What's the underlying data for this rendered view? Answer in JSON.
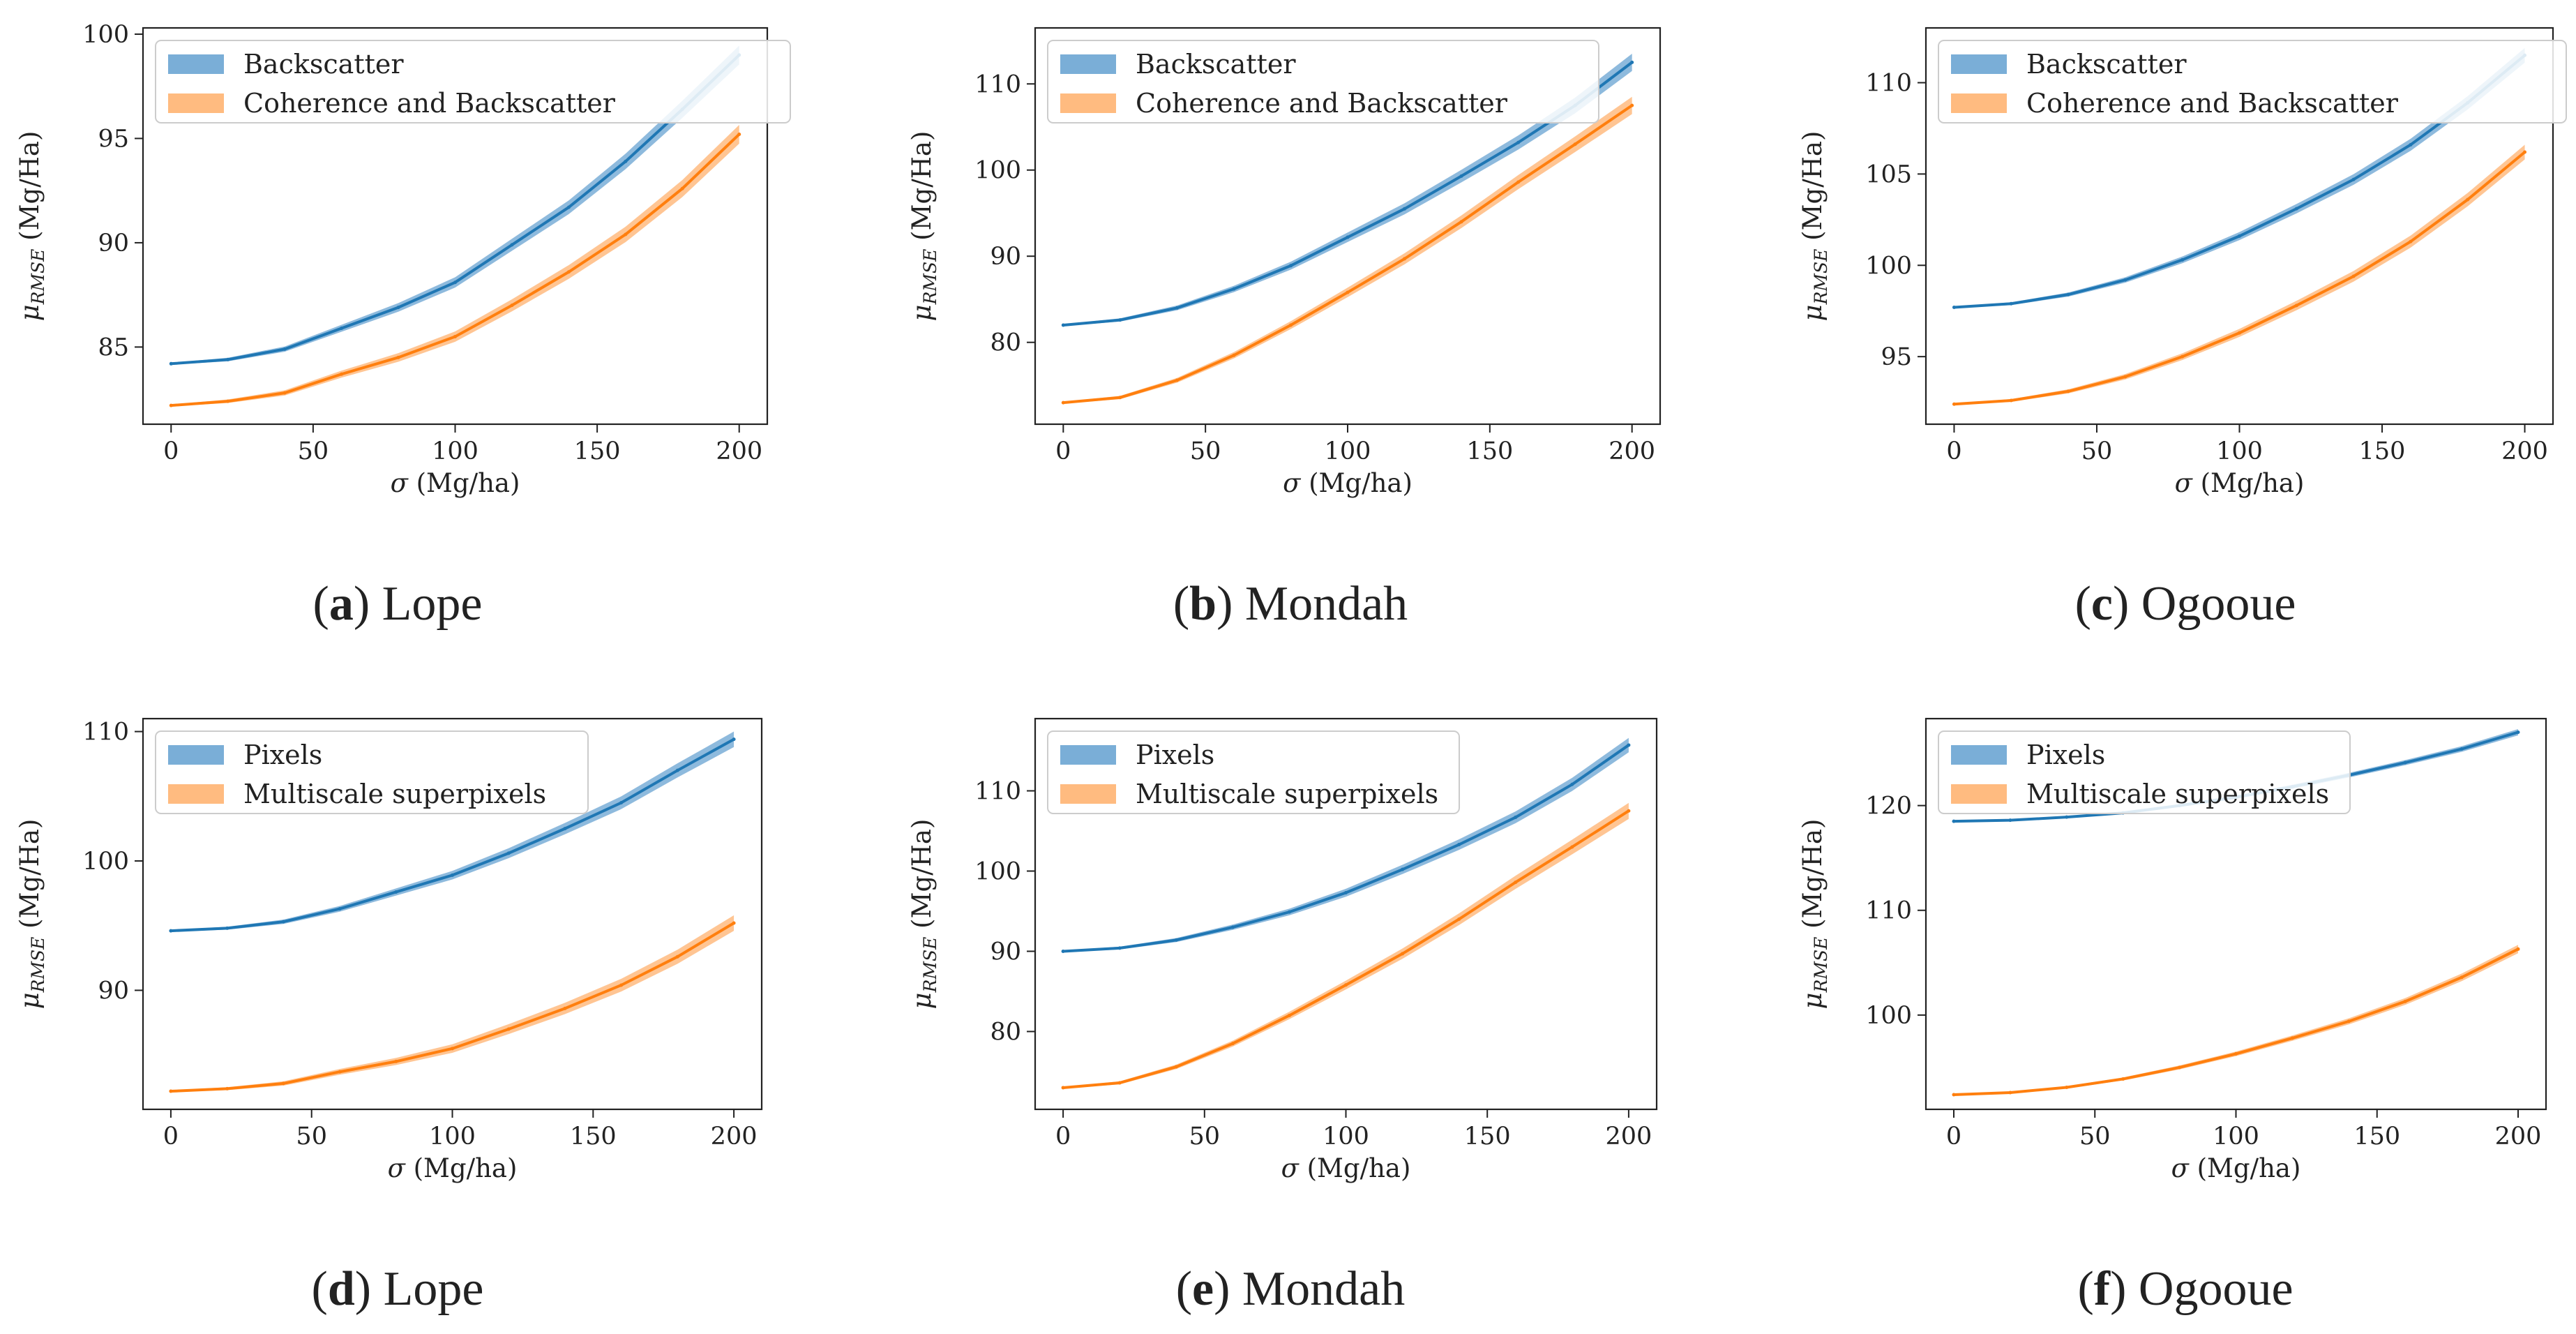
{
  "figure": {
    "captions": [
      {
        "letter": "a",
        "name": "Lope"
      },
      {
        "letter": "b",
        "name": "Mondah"
      },
      {
        "letter": "c",
        "name": "Ogooue"
      },
      {
        "letter": "d",
        "name": "Lope"
      },
      {
        "letter": "e",
        "name": "Mondah"
      },
      {
        "letter": "f",
        "name": "Ogooue"
      }
    ]
  },
  "colors": {
    "blue": "#1f77b4",
    "orange": "#ff7f0e",
    "blue_band": "#7aaed7",
    "orange_band": "#ffbb80"
  },
  "chart_data": [
    {
      "type": "line",
      "title": "(a) Lope",
      "xlabel": "σ (Mg/ha)",
      "ylabel": "μRMSE (Mg/Ha)",
      "xlim": [
        0,
        200
      ],
      "ylim": [
        81.3,
        100.3
      ],
      "xticks": [
        0,
        50,
        100,
        150,
        200
      ],
      "yticks": [
        85,
        90,
        95,
        100
      ],
      "legend": "upper-left",
      "x": [
        0,
        20,
        40,
        60,
        80,
        100,
        120,
        140,
        160,
        180,
        200
      ],
      "series": [
        {
          "name": "Backscatter",
          "color": "#1f77b4",
          "values": [
            84.2,
            84.4,
            84.9,
            85.9,
            86.9,
            88.1,
            89.9,
            91.7,
            93.9,
            96.4,
            99.0
          ],
          "band": 0.45
        },
        {
          "name": "Coherence and Backscatter",
          "color": "#ff7f0e",
          "values": [
            82.2,
            82.4,
            82.8,
            83.7,
            84.5,
            85.5,
            87.0,
            88.6,
            90.4,
            92.6,
            95.2
          ],
          "band": 0.45
        }
      ]
    },
    {
      "type": "line",
      "title": "(b) Mondah",
      "xlabel": "σ (Mg/ha)",
      "ylabel": "μRMSE (Mg/Ha)",
      "xlim": [
        0,
        200
      ],
      "ylim": [
        70.5,
        116.5
      ],
      "xticks": [
        0,
        50,
        100,
        150,
        200
      ],
      "yticks": [
        80,
        90,
        100,
        110
      ],
      "legend": "upper-left",
      "x": [
        0,
        20,
        40,
        60,
        80,
        100,
        120,
        140,
        160,
        180,
        200
      ],
      "series": [
        {
          "name": "Backscatter",
          "color": "#1f77b4",
          "values": [
            82.0,
            82.6,
            84.0,
            86.2,
            88.9,
            92.2,
            95.5,
            99.3,
            103.2,
            107.5,
            112.5
          ],
          "band": 1.0
        },
        {
          "name": "Coherence and Backscatter",
          "color": "#ff7f0e",
          "values": [
            73.0,
            73.6,
            75.6,
            78.5,
            82.0,
            85.8,
            89.7,
            94.0,
            98.6,
            103.0,
            107.5
          ],
          "band": 1.0
        }
      ]
    },
    {
      "type": "line",
      "title": "(c) Ogooue",
      "xlabel": "σ (Mg/ha)",
      "ylabel": "μRMSE (Mg/Ha)",
      "xlim": [
        0,
        200
      ],
      "ylim": [
        91.3,
        113.0
      ],
      "xticks": [
        0,
        50,
        100,
        150,
        200
      ],
      "yticks": [
        95,
        100,
        105,
        110
      ],
      "legend": "upper-left",
      "x": [
        0,
        20,
        40,
        60,
        80,
        100,
        120,
        140,
        160,
        180,
        200
      ],
      "series": [
        {
          "name": "Backscatter",
          "color": "#1f77b4",
          "values": [
            97.7,
            97.9,
            98.4,
            99.2,
            100.3,
            101.6,
            103.1,
            104.7,
            106.6,
            108.9,
            111.5
          ],
          "band": 0.4
        },
        {
          "name": "Coherence and Backscatter",
          "color": "#ff7f0e",
          "values": [
            92.4,
            92.6,
            93.1,
            93.9,
            95.0,
            96.3,
            97.8,
            99.4,
            101.3,
            103.6,
            106.2
          ],
          "band": 0.4
        }
      ]
    },
    {
      "type": "line",
      "title": "(d) Lope",
      "xlabel": "σ (Mg/ha)",
      "ylabel": "μRMSE (Mg/Ha)",
      "xlim": [
        0,
        200
      ],
      "ylim": [
        80.8,
        111.0
      ],
      "xticks": [
        0,
        50,
        100,
        150,
        200
      ],
      "yticks": [
        90,
        100,
        110
      ],
      "legend": "upper-left",
      "x": [
        0,
        20,
        40,
        60,
        80,
        100,
        120,
        140,
        160,
        180,
        200
      ],
      "series": [
        {
          "name": "Pixels",
          "color": "#1f77b4",
          "values": [
            94.6,
            94.8,
            95.3,
            96.3,
            97.6,
            98.9,
            100.6,
            102.5,
            104.5,
            107.0,
            109.4
          ],
          "band": 0.6
        },
        {
          "name": "Multiscale superpixels",
          "color": "#ff7f0e",
          "values": [
            82.2,
            82.4,
            82.8,
            83.7,
            84.5,
            85.5,
            87.0,
            88.6,
            90.4,
            92.6,
            95.2
          ],
          "band": 0.6
        }
      ]
    },
    {
      "type": "line",
      "title": "(e) Mondah",
      "xlabel": "σ (Mg/ha)",
      "ylabel": "μRMSE (Mg/Ha)",
      "xlim": [
        0,
        200
      ],
      "ylim": [
        70.3,
        119.0
      ],
      "xticks": [
        0,
        50,
        100,
        150,
        200
      ],
      "yticks": [
        80,
        90,
        100,
        110
      ],
      "legend": "upper-left",
      "x": [
        0,
        20,
        40,
        60,
        80,
        100,
        120,
        140,
        160,
        180,
        200
      ],
      "series": [
        {
          "name": "Pixels",
          "color": "#1f77b4",
          "values": [
            90.0,
            90.4,
            91.4,
            93.0,
            94.9,
            97.3,
            100.2,
            103.3,
            106.7,
            110.8,
            115.7
          ],
          "band": 0.9
        },
        {
          "name": "Multiscale superpixels",
          "color": "#ff7f0e",
          "values": [
            73.0,
            73.6,
            75.6,
            78.5,
            82.0,
            85.8,
            89.7,
            94.0,
            98.6,
            103.0,
            107.5
          ],
          "band": 1.0
        }
      ]
    },
    {
      "type": "line",
      "title": "(f) Ogooue",
      "xlabel": "σ (Mg/ha)",
      "ylabel": "μRMSE (Mg/Ha)",
      "xlim": [
        0,
        200
      ],
      "ylim": [
        91.0,
        128.3
      ],
      "xticks": [
        0,
        50,
        100,
        150,
        200
      ],
      "yticks": [
        100,
        110,
        120
      ],
      "legend": "upper-left",
      "x": [
        0,
        20,
        40,
        60,
        80,
        100,
        120,
        140,
        160,
        180,
        200
      ],
      "series": [
        {
          "name": "Pixels",
          "color": "#1f77b4",
          "values": [
            118.5,
            118.6,
            118.9,
            119.3,
            120.0,
            120.8,
            121.8,
            122.9,
            124.1,
            125.4,
            127.0
          ],
          "band": 0.3
        },
        {
          "name": "Multiscale superpixels",
          "color": "#ff7f0e",
          "values": [
            92.4,
            92.6,
            93.1,
            93.9,
            95.0,
            96.3,
            97.8,
            99.4,
            101.3,
            103.6,
            106.3
          ],
          "band": 0.4
        }
      ]
    }
  ]
}
